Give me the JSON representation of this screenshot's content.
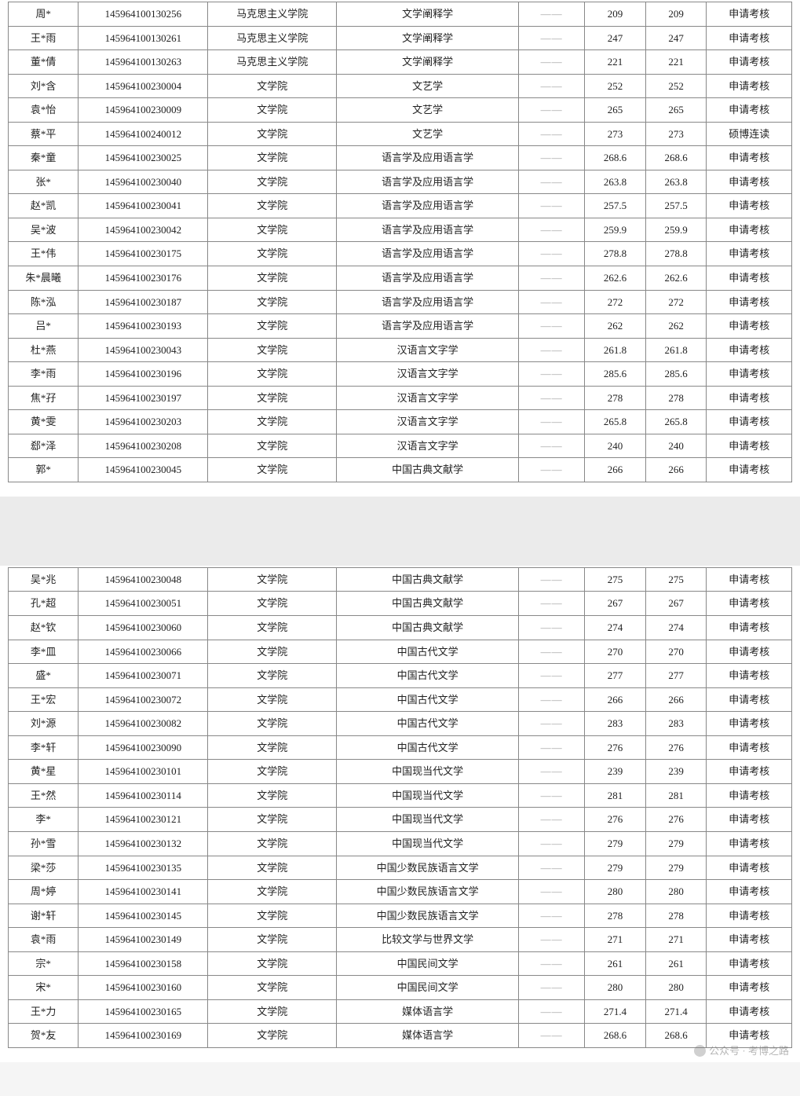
{
  "columns": {
    "widths_pct": [
      8.4,
      15.5,
      15.4,
      21.8,
      7.9,
      7.3,
      7.3,
      10.2
    ]
  },
  "dash": "——",
  "watermark": "公众号 · 考博之路",
  "table1": {
    "rows": [
      [
        "周*",
        "145964100130256",
        "马克思主义学院",
        "文学阐释学",
        "——",
        "209",
        "209",
        "申请考核"
      ],
      [
        "王*雨",
        "145964100130261",
        "马克思主义学院",
        "文学阐释学",
        "——",
        "247",
        "247",
        "申请考核"
      ],
      [
        "董*倩",
        "145964100130263",
        "马克思主义学院",
        "文学阐释学",
        "——",
        "221",
        "221",
        "申请考核"
      ],
      [
        "刘*含",
        "145964100230004",
        "文学院",
        "文艺学",
        "——",
        "252",
        "252",
        "申请考核"
      ],
      [
        "袁*怡",
        "145964100230009",
        "文学院",
        "文艺学",
        "——",
        "265",
        "265",
        "申请考核"
      ],
      [
        "蔡*平",
        "145964100240012",
        "文学院",
        "文艺学",
        "——",
        "273",
        "273",
        "硕博连读"
      ],
      [
        "秦*童",
        "145964100230025",
        "文学院",
        "语言学及应用语言学",
        "——",
        "268.6",
        "268.6",
        "申请考核"
      ],
      [
        "张*",
        "145964100230040",
        "文学院",
        "语言学及应用语言学",
        "——",
        "263.8",
        "263.8",
        "申请考核"
      ],
      [
        "赵*凯",
        "145964100230041",
        "文学院",
        "语言学及应用语言学",
        "——",
        "257.5",
        "257.5",
        "申请考核"
      ],
      [
        "吴*波",
        "145964100230042",
        "文学院",
        "语言学及应用语言学",
        "——",
        "259.9",
        "259.9",
        "申请考核"
      ],
      [
        "王*伟",
        "145964100230175",
        "文学院",
        "语言学及应用语言学",
        "——",
        "278.8",
        "278.8",
        "申请考核"
      ],
      [
        "朱*晨曦",
        "145964100230176",
        "文学院",
        "语言学及应用语言学",
        "——",
        "262.6",
        "262.6",
        "申请考核"
      ],
      [
        "陈*泓",
        "145964100230187",
        "文学院",
        "语言学及应用语言学",
        "——",
        "272",
        "272",
        "申请考核"
      ],
      [
        "吕*",
        "145964100230193",
        "文学院",
        "语言学及应用语言学",
        "——",
        "262",
        "262",
        "申请考核"
      ],
      [
        "杜*燕",
        "145964100230043",
        "文学院",
        "汉语言文字学",
        "——",
        "261.8",
        "261.8",
        "申请考核"
      ],
      [
        "李*雨",
        "145964100230196",
        "文学院",
        "汉语言文字学",
        "——",
        "285.6",
        "285.6",
        "申请考核"
      ],
      [
        "焦*孖",
        "145964100230197",
        "文学院",
        "汉语言文字学",
        "——",
        "278",
        "278",
        "申请考核"
      ],
      [
        "黄*雯",
        "145964100230203",
        "文学院",
        "汉语言文字学",
        "——",
        "265.8",
        "265.8",
        "申请考核"
      ],
      [
        "郄*泽",
        "145964100230208",
        "文学院",
        "汉语言文字学",
        "——",
        "240",
        "240",
        "申请考核"
      ],
      [
        "郭*",
        "145964100230045",
        "文学院",
        "中国古典文献学",
        "——",
        "266",
        "266",
        "申请考核"
      ]
    ]
  },
  "table2": {
    "rows": [
      [
        "吴*兆",
        "145964100230048",
        "文学院",
        "中国古典文献学",
        "——",
        "275",
        "275",
        "申请考核"
      ],
      [
        "孔*超",
        "145964100230051",
        "文学院",
        "中国古典文献学",
        "——",
        "267",
        "267",
        "申请考核"
      ],
      [
        "赵*钦",
        "145964100230060",
        "文学院",
        "中国古典文献学",
        "——",
        "274",
        "274",
        "申请考核"
      ],
      [
        "李*皿",
        "145964100230066",
        "文学院",
        "中国古代文学",
        "——",
        "270",
        "270",
        "申请考核"
      ],
      [
        "盛*",
        "145964100230071",
        "文学院",
        "中国古代文学",
        "——",
        "277",
        "277",
        "申请考核"
      ],
      [
        "王*宏",
        "145964100230072",
        "文学院",
        "中国古代文学",
        "——",
        "266",
        "266",
        "申请考核"
      ],
      [
        "刘*源",
        "145964100230082",
        "文学院",
        "中国古代文学",
        "——",
        "283",
        "283",
        "申请考核"
      ],
      [
        "李*轩",
        "145964100230090",
        "文学院",
        "中国古代文学",
        "——",
        "276",
        "276",
        "申请考核"
      ],
      [
        "黄*星",
        "145964100230101",
        "文学院",
        "中国现当代文学",
        "——",
        "239",
        "239",
        "申请考核"
      ],
      [
        "王*然",
        "145964100230114",
        "文学院",
        "中国现当代文学",
        "——",
        "281",
        "281",
        "申请考核"
      ],
      [
        "李*",
        "145964100230121",
        "文学院",
        "中国现当代文学",
        "——",
        "276",
        "276",
        "申请考核"
      ],
      [
        "孙*雪",
        "145964100230132",
        "文学院",
        "中国现当代文学",
        "——",
        "279",
        "279",
        "申请考核"
      ],
      [
        "梁*莎",
        "145964100230135",
        "文学院",
        "中国少数民族语言文学",
        "——",
        "279",
        "279",
        "申请考核"
      ],
      [
        "周*婷",
        "145964100230141",
        "文学院",
        "中国少数民族语言文学",
        "——",
        "280",
        "280",
        "申请考核"
      ],
      [
        "谢*轩",
        "145964100230145",
        "文学院",
        "中国少数民族语言文学",
        "——",
        "278",
        "278",
        "申请考核"
      ],
      [
        "袁*雨",
        "145964100230149",
        "文学院",
        "比较文学与世界文学",
        "——",
        "271",
        "271",
        "申请考核"
      ],
      [
        "宗*",
        "145964100230158",
        "文学院",
        "中国民间文学",
        "——",
        "261",
        "261",
        "申请考核"
      ],
      [
        "宋*",
        "145964100230160",
        "文学院",
        "中国民间文学",
        "——",
        "280",
        "280",
        "申请考核"
      ],
      [
        "王*力",
        "145964100230165",
        "文学院",
        "媒体语言学",
        "——",
        "271.4",
        "271.4",
        "申请考核"
      ],
      [
        "贺*友",
        "145964100230169",
        "文学院",
        "媒体语言学",
        "——",
        "268.6",
        "268.6",
        "申请考核"
      ]
    ]
  }
}
